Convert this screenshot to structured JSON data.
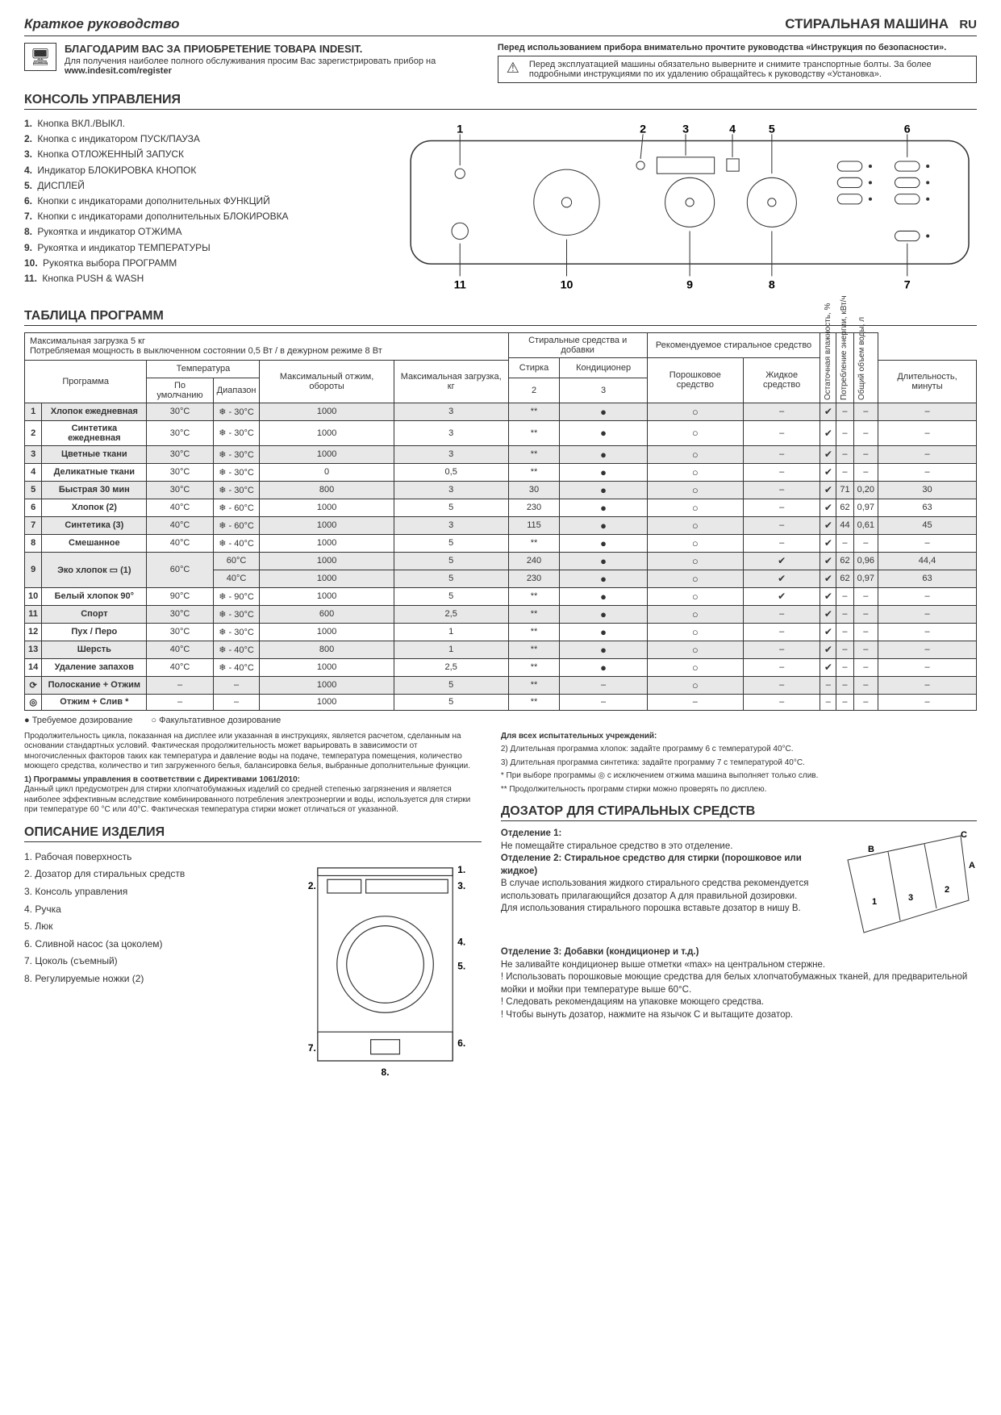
{
  "header": {
    "guide": "Краткое руководство",
    "product": "СТИРАЛЬНАЯ МАШИНА",
    "lang": "RU"
  },
  "thanks": {
    "title": "БЛАГОДАРИМ ВАС ЗА ПРИОБРЕТЕНИЕ ТОВАРА INDESIT.",
    "line1": "Для получения наиболее полного обслуживания просим Вас зарегистрировать прибор на",
    "url": "www.indesit.com/register",
    "right_bold": "Перед использованием прибора внимательно прочтите руководства «Инструкция по безопасности».",
    "warn": "Перед эксплуатацией машины обязательно выверните и снимите транспортные болты. За более подробными инструкциями по их удалению обращайтесь к руководству «Установка»."
  },
  "console": {
    "title": "КОНСОЛЬ УПРАВЛЕНИЯ",
    "items": [
      "Кнопка ВКЛ./ВЫКЛ.",
      "Кнопка с индикатором ПУСК/ПАУЗА",
      "Кнопка ОТЛОЖЕННЫЙ ЗАПУСК",
      "Индикатор БЛОКИРОВКА КНОПОК",
      "ДИСПЛЕЙ",
      "Кнопки с индикаторами дополнительных  ФУНКЦИЙ",
      "Кнопки с индикаторами дополнительных БЛОКИРОВКА",
      "Рукоятка и индикатор ОТЖИМА",
      "Рукоятка и индикатор ТЕМПЕРАТУРЫ",
      "Рукоятка выбора ПРОГРАММ",
      "Кнопка PUSH & WASH"
    ],
    "diag_labels": [
      "1",
      "2",
      "3",
      "4",
      "5",
      "6",
      "7",
      "8",
      "9",
      "10",
      "11"
    ]
  },
  "progtable": {
    "title": "ТАБЛИЦА ПРОГРАММ",
    "topnote1": "Максимальная загрузка 5 кг",
    "topnote2": "Потребляемая мощность в выключенном состоянии 0,5 Вт / в дежурном режиме 8 Вт",
    "h_detadd": "Стиральные средства и добавки",
    "h_recdet": "Рекомендуемое стиральное средство",
    "h_program": "Программа",
    "h_temp": "Температура",
    "h_spin": "Максимальный отжим, обороты",
    "h_load": "Максимальная загрузка, кг",
    "h_dur": "Длительность, минуты",
    "h_wash": "Стирка",
    "h_cond": "Кондиционер",
    "h_powder": "Порошковое средство",
    "h_liquid": "Жидкое средство",
    "h_moist": "Остаточная влажность, %",
    "h_energy": "Потребление энергии, кВт/ч",
    "h_water": "Общий объем воды, л",
    "h_tempdef": "По умолчанию",
    "h_temprange": "Диапазон",
    "h_wash2": "2",
    "h_cond2": "3",
    "rows": [
      {
        "n": "1",
        "name": "Хлопок ежедневная",
        "td": "30°C",
        "tr": "❄ - 30°C",
        "sp": "1000",
        "ld": "3",
        "du": "**",
        "w": "f",
        "c": "e",
        "p": "–",
        "l": "c",
        "m": "–",
        "en": "–",
        "wa": "–",
        "g": true
      },
      {
        "n": "2",
        "name": "Синтетика ежедневная",
        "td": "30°C",
        "tr": "❄ - 30°C",
        "sp": "1000",
        "ld": "3",
        "du": "**",
        "w": "f",
        "c": "e",
        "p": "–",
        "l": "c",
        "m": "–",
        "en": "–",
        "wa": "–",
        "g": false
      },
      {
        "n": "3",
        "name": "Цветные ткани",
        "td": "30°C",
        "tr": "❄ - 30°C",
        "sp": "1000",
        "ld": "3",
        "du": "**",
        "w": "f",
        "c": "e",
        "p": "–",
        "l": "c",
        "m": "–",
        "en": "–",
        "wa": "–",
        "g": true
      },
      {
        "n": "4",
        "name": "Деликатные ткани",
        "td": "30°C",
        "tr": "❄ - 30°C",
        "sp": "0",
        "ld": "0,5",
        "du": "**",
        "w": "f",
        "c": "e",
        "p": "–",
        "l": "c",
        "m": "–",
        "en": "–",
        "wa": "–",
        "g": false
      },
      {
        "n": "5",
        "name": "Быстрая 30 мин",
        "td": "30°C",
        "tr": "❄ - 30°C",
        "sp": "800",
        "ld": "3",
        "du": "30",
        "w": "f",
        "c": "e",
        "p": "–",
        "l": "c",
        "m": "71",
        "en": "0,20",
        "wa": "30",
        "g": true
      },
      {
        "n": "6",
        "name": "Хлопок (2)",
        "td": "40°C",
        "tr": "❄ - 60°C",
        "sp": "1000",
        "ld": "5",
        "du": "230",
        "w": "f",
        "c": "e",
        "p": "–",
        "l": "c",
        "m": "62",
        "en": "0,97",
        "wa": "63",
        "g": false
      },
      {
        "n": "7",
        "name": "Синтетика (3)",
        "td": "40°C",
        "tr": "❄ - 60°C",
        "sp": "1000",
        "ld": "3",
        "du": "115",
        "w": "f",
        "c": "e",
        "p": "–",
        "l": "c",
        "m": "44",
        "en": "0,61",
        "wa": "45",
        "g": true
      },
      {
        "n": "8",
        "name": "Смешанное",
        "td": "40°C",
        "tr": "❄ - 40°C",
        "sp": "1000",
        "ld": "5",
        "du": "**",
        "w": "f",
        "c": "e",
        "p": "–",
        "l": "c",
        "m": "–",
        "en": "–",
        "wa": "–",
        "g": false
      },
      {
        "n": "9a",
        "name": "Эко хлопок ▭ (1)",
        "td": "60°C",
        "tr": "60°C",
        "sp": "1000",
        "ld": "5",
        "du": "240",
        "w": "f",
        "c": "e",
        "p": "c",
        "l": "c",
        "m": "62",
        "en": "0,96",
        "wa": "44,4",
        "g": true,
        "rowspan": true
      },
      {
        "n": "9b",
        "name": "",
        "td": "",
        "tr": "40°C",
        "sp": "1000",
        "ld": "5",
        "du": "230",
        "w": "f",
        "c": "e",
        "p": "c",
        "l": "c",
        "m": "62",
        "en": "0,97",
        "wa": "63",
        "g": true,
        "sub": true
      },
      {
        "n": "10",
        "name": "Белый хлопок 90°",
        "td": "90°C",
        "tr": "❄ - 90°C",
        "sp": "1000",
        "ld": "5",
        "du": "**",
        "w": "f",
        "c": "e",
        "p": "c",
        "l": "c",
        "m": "–",
        "en": "–",
        "wa": "–",
        "g": false
      },
      {
        "n": "11",
        "name": "Спорт",
        "td": "30°C",
        "tr": "❄ - 30°C",
        "sp": "600",
        "ld": "2,5",
        "du": "**",
        "w": "f",
        "c": "e",
        "p": "–",
        "l": "c",
        "m": "–",
        "en": "–",
        "wa": "–",
        "g": true
      },
      {
        "n": "12",
        "name": "Пух / Перо",
        "td": "30°C",
        "tr": "❄ - 30°C",
        "sp": "1000",
        "ld": "1",
        "du": "**",
        "w": "f",
        "c": "e",
        "p": "–",
        "l": "c",
        "m": "–",
        "en": "–",
        "wa": "–",
        "g": false
      },
      {
        "n": "13",
        "name": "Шерсть",
        "td": "40°C",
        "tr": "❄ - 40°C",
        "sp": "800",
        "ld": "1",
        "du": "**",
        "w": "f",
        "c": "e",
        "p": "–",
        "l": "c",
        "m": "–",
        "en": "–",
        "wa": "–",
        "g": true
      },
      {
        "n": "14",
        "name": "Удаление запахов",
        "td": "40°C",
        "tr": "❄ - 40°C",
        "sp": "1000",
        "ld": "2,5",
        "du": "**",
        "w": "f",
        "c": "e",
        "p": "–",
        "l": "c",
        "m": "–",
        "en": "–",
        "wa": "–",
        "g": false
      },
      {
        "n": "⟳",
        "name": "Полоскание + Отжим",
        "td": "–",
        "tr": "–",
        "sp": "1000",
        "ld": "5",
        "du": "**",
        "w": "–",
        "c": "e",
        "p": "–",
        "l": "–",
        "m": "–",
        "en": "–",
        "wa": "–",
        "g": true
      },
      {
        "n": "◎",
        "name": "Отжим + Слив *",
        "td": "–",
        "tr": "–",
        "sp": "1000",
        "ld": "5",
        "du": "**",
        "w": "–",
        "c": "–",
        "p": "–",
        "l": "–",
        "m": "–",
        "en": "–",
        "wa": "–",
        "g": false
      }
    ],
    "legend_req": "● Требуемое дозирование",
    "legend_opt": "○ Факультативное дозирование"
  },
  "fine": {
    "left1": "Продолжительность цикла, показанная на дисплее или указанная в инструкциях, является расчетом, сделанным на основании стандартных условий. Фактическая продолжительность может варьировать в зависимости от многочисленных факторов таких как температура и давление воды на подаче, температура помещения, количество моющего средства, количество и тип загруженного белья, балансировка белья, выбранные дополнительные функции.",
    "left2b": "1) Программы управления в соответствии с Директивами 1061/2010:",
    "left2": "Данный цикл предусмотрен для стирки хлопчатобумажных изделий со средней степенью загрязнения и является наиболее эффективным вследствие комбинированного потребления электроэнергии и воды, используется для стирки при температуре 60 °С или 40°С. Фактическая температура стирки может отличаться от указанной.",
    "right_h": "Для всех испытательных учреждений:",
    "right1": "2)  Длительная программа хлопок: задайте программу 6 с температурой 40°С.",
    "right2": "3)  Длительная программа синтетика: задайте программу 7 с температурой 40°С.",
    "right3": "*  При выборе программы ◎  с исключением отжима машина выполняет только слив.",
    "right4": "**  Продолжительность программ стирки можно проверять по дисплею."
  },
  "desc": {
    "title": "ОПИСАНИЕ ИЗДЕЛИЯ",
    "items": [
      "Рабочая поверхность",
      "Дозатор для стиральных средств",
      "Консоль управления",
      "Ручка",
      "Люк",
      "Сливной насос (за цоколем)",
      "Цоколь (съемный)",
      "Регулируемые ножки (2)"
    ]
  },
  "dispenser": {
    "title": "ДОЗАТОР ДЛЯ СТИРАЛЬНЫХ СРЕДСТВ",
    "s1b": "Отделение 1:",
    "s1": "Не помещайте стиральное средство в это отделение.",
    "s2b": "Отделение 2: Стиральное средство для стирки (порошковое или жидкое)",
    "s2a": "В случае использования жидкого стирального средства рекомендуется использовать прилагающийся дозатор A для правильной дозировки.",
    "s2c": "Для использования стирального порошка вставьте дозатор в нишу B.",
    "s3b": "Отделение 3: Добавки (кондиционер и т.д.)",
    "s3": "Не заливайте кондиционер выше отметки «max» на центральном стержне.",
    "w1": "! Использовать порошковые моющие средства для белых хлопчатобумажных тканей, для предварительной мойки и мойки при температуре выше 60°С.",
    "w2": "! Следовать рекомендациям на упаковке моющего средства.",
    "w3": "! Чтобы вынуть дозатор, нажмите на язычок C и вытащите дозатор."
  }
}
